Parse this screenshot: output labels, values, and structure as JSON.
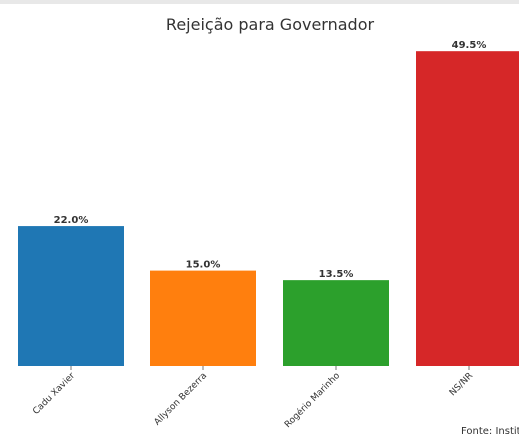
{
  "chart_data": {
    "type": "bar",
    "title": "Rejeição para Governador",
    "categories": [
      "Cadu Xavier",
      "Allyson Bezerra",
      "Rogério Marinho",
      "NS/NR"
    ],
    "values": [
      22.0,
      15.0,
      13.5,
      49.5
    ],
    "value_labels": [
      "22.0%",
      "15.0%",
      "13.5%",
      "49.5%"
    ],
    "colors": [
      "#1f77b4",
      "#ff7f0e",
      "#2ca02c",
      "#d62728"
    ],
    "xlabel": "",
    "ylabel": "",
    "ylim": [
      0,
      55
    ],
    "grid": false,
    "legend": "none"
  },
  "footer": {
    "source_text": "Fonte: Institu"
  }
}
